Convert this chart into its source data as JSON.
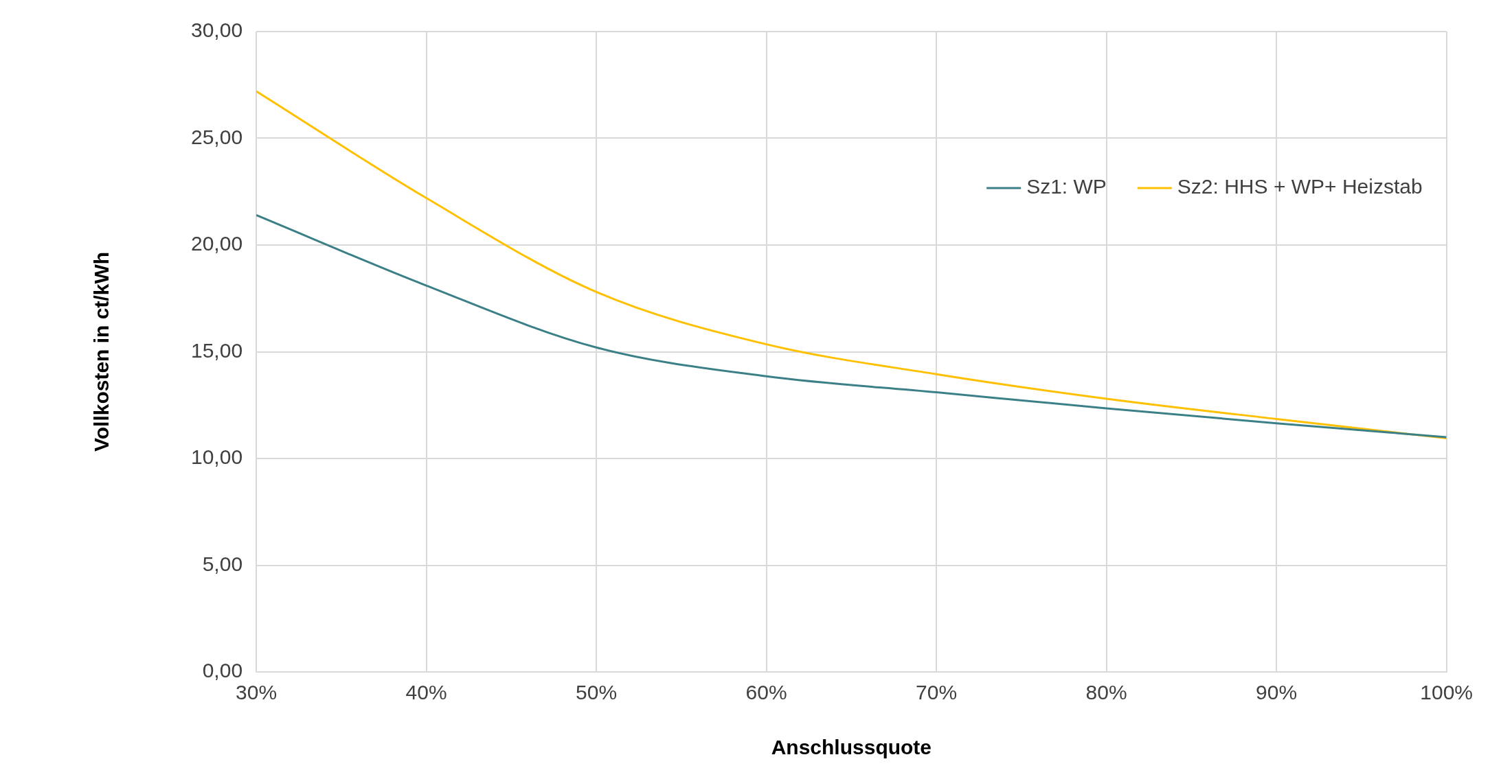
{
  "chart_data": {
    "type": "line",
    "xlabel": "Anschlussquote",
    "ylabel": "Vollkosten in ct/kWh",
    "x": [
      30,
      40,
      50,
      60,
      70,
      80,
      90,
      100
    ],
    "series": [
      {
        "name": "Sz1: WP",
        "color": "#3c8087",
        "values": [
          21.4,
          18.1,
          15.2,
          13.85,
          13.1,
          12.35,
          11.65,
          11.0
        ]
      },
      {
        "name": "Sz2: HHS + WP+ Heizstab",
        "color": "#ffc000",
        "values": [
          27.2,
          22.2,
          17.8,
          15.35,
          13.95,
          12.8,
          11.85,
          10.95
        ]
      }
    ],
    "xlim": [
      30,
      100
    ],
    "xticks": [
      {
        "value": 30,
        "label": "30%"
      },
      {
        "value": 40,
        "label": "40%"
      },
      {
        "value": 50,
        "label": "50%"
      },
      {
        "value": 60,
        "label": "60%"
      },
      {
        "value": 70,
        "label": "70%"
      },
      {
        "value": 80,
        "label": "80%"
      },
      {
        "value": 90,
        "label": "90%"
      },
      {
        "value": 100,
        "label": "100%"
      }
    ],
    "ylim": [
      0,
      30
    ],
    "yticks": [
      {
        "value": 0,
        "label": "0,00"
      },
      {
        "value": 5,
        "label": "5,00"
      },
      {
        "value": 10,
        "label": "10,00"
      },
      {
        "value": 15,
        "label": "15,00"
      },
      {
        "value": 20,
        "label": "20,00"
      },
      {
        "value": 25,
        "label": "25,00"
      },
      {
        "value": 30,
        "label": "30,00"
      }
    ],
    "grid": true,
    "legend": "top right",
    "marker": "none",
    "line_style": "solid"
  }
}
